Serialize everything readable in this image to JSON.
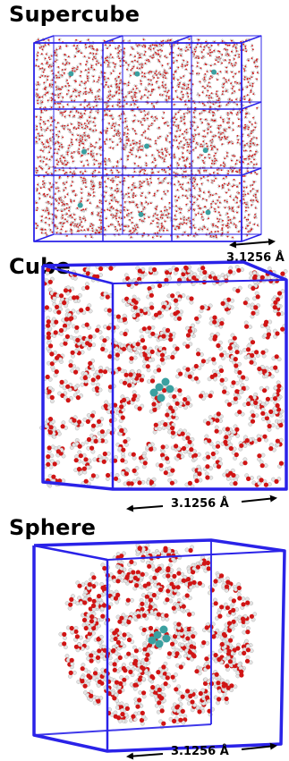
{
  "panels": [
    {
      "title": "Supercube",
      "scale_label": "3.1256 Å"
    },
    {
      "title": "Cube",
      "scale_label": "3.1256 Å"
    },
    {
      "title": "Sphere",
      "scale_label": "3.1256 Å"
    }
  ],
  "colors": {
    "box": "#2a22e8",
    "oxygen": "#d01414",
    "hydrogen": "#e4e4e4",
    "solute": "#3aa0a0",
    "arrow": "#000000"
  }
}
